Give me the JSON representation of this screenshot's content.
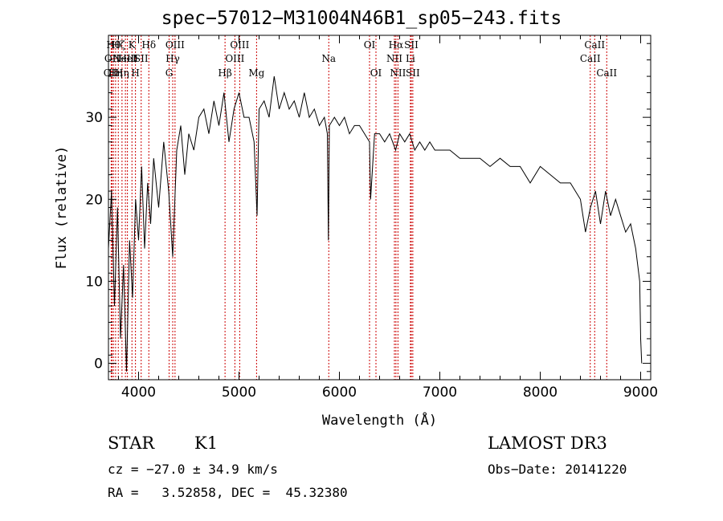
{
  "chart_data": {
    "type": "line",
    "title": "spec−57012−M31004N46B1_sp05−243.fits",
    "xlabel": "Wavelength (Å)",
    "ylabel": "Flux (relative)",
    "xlim": [
      3700,
      9100
    ],
    "ylim": [
      -2,
      40
    ],
    "xticks": [
      4000,
      5000,
      6000,
      7000,
      8000,
      9000
    ],
    "yticks": [
      0,
      10,
      20,
      30
    ],
    "grid": false,
    "line_color": "#000000",
    "marker_color": "#cc0000",
    "series": [
      {
        "x": [
          3700,
          3730,
          3760,
          3790,
          3820,
          3850,
          3880,
          3910,
          3940,
          3970,
          4000,
          4030,
          4060,
          4090,
          4120,
          4150,
          4200,
          4250,
          4300,
          4340,
          4380,
          4420,
          4460,
          4500,
          4550,
          4600,
          4650,
          4700,
          4750,
          4800,
          4850,
          4900,
          4950,
          5000,
          5050,
          5100,
          5150,
          5180,
          5200,
          5250,
          5300,
          5350,
          5400,
          5450,
          5500,
          5550,
          5600,
          5650,
          5700,
          5750,
          5800,
          5850,
          5880,
          5890,
          5900,
          5950,
          6000,
          6050,
          6100,
          6150,
          6200,
          6250,
          6300,
          6310,
          6350,
          6400,
          6450,
          6500,
          6560,
          6600,
          6650,
          6700,
          6750,
          6800,
          6850,
          6900,
          6950,
          7000,
          7100,
          7200,
          7300,
          7400,
          7500,
          7600,
          7700,
          7800,
          7900,
          8000,
          8100,
          8200,
          8300,
          8400,
          8450,
          8500,
          8550,
          8600,
          8650,
          8700,
          8750,
          8800,
          8850,
          8900,
          8950,
          8990,
          9000,
          9010
        ],
        "y": [
          14,
          21,
          7,
          19,
          3,
          12,
          -1,
          15,
          8,
          20,
          15,
          24,
          14,
          22,
          17,
          25,
          19,
          27,
          21,
          13,
          26,
          29,
          23,
          28,
          26,
          30,
          31,
          28,
          32,
          29,
          33,
          27,
          31,
          33,
          30,
          30,
          27,
          18,
          31,
          32,
          30,
          35,
          31,
          33,
          31,
          32,
          30,
          33,
          30,
          31,
          29,
          30,
          28,
          15,
          29,
          30,
          29,
          30,
          28,
          29,
          29,
          28,
          27,
          20,
          28,
          28,
          27,
          28,
          26,
          28,
          27,
          28,
          26,
          27,
          26,
          27,
          26,
          26,
          26,
          25,
          25,
          25,
          24,
          25,
          24,
          24,
          22,
          24,
          23,
          22,
          22,
          20,
          16,
          19,
          21,
          17,
          21,
          18,
          20,
          18,
          16,
          17,
          14,
          10,
          3,
          0
        ]
      }
    ],
    "lines": [
      {
        "wavelength": 3727,
        "labels": [
          "OII"
        ],
        "row": 2
      },
      {
        "wavelength": 3736,
        "labels": [
          "OII"
        ],
        "row": 1
      },
      {
        "wavelength": 3750,
        "labels": [
          "Hθ"
        ],
        "row": 0
      },
      {
        "wavelength": 3771,
        "labels": [
          "Hη"
        ],
        "row": 2
      },
      {
        "wavelength": 3798,
        "labels": [
          "Hζ"
        ],
        "row": 0
      },
      {
        "wavelength": 3835,
        "labels": [
          "Hη"
        ],
        "row": 2
      },
      {
        "wavelength": 3869,
        "labels": [
          "NeIII"
        ],
        "row": 1
      },
      {
        "wavelength": 3889,
        "labels": [
          "HeI"
        ],
        "row": 1
      },
      {
        "wavelength": 3934,
        "labels": [
          "K"
        ],
        "row": 0
      },
      {
        "wavelength": 3969,
        "labels": [
          "H"
        ],
        "row": 2
      },
      {
        "wavelength": 4026,
        "labels": [
          "SII"
        ],
        "row": 1
      },
      {
        "wavelength": 4102,
        "labels": [
          "Hδ"
        ],
        "row": 0
      },
      {
        "wavelength": 4304,
        "labels": [
          "G"
        ],
        "row": 2
      },
      {
        "wavelength": 4340,
        "labels": [
          "Hγ"
        ],
        "row": 1
      },
      {
        "wavelength": 4363,
        "labels": [
          "OIII"
        ],
        "row": 0
      },
      {
        "wavelength": 4861,
        "labels": [
          "Hβ"
        ],
        "row": 2
      },
      {
        "wavelength": 4959,
        "labels": [
          "OIII"
        ],
        "row": 1
      },
      {
        "wavelength": 5007,
        "labels": [
          "OIII"
        ],
        "row": 0
      },
      {
        "wavelength": 5175,
        "labels": [
          "Mg"
        ],
        "row": 2
      },
      {
        "wavelength": 5894,
        "labels": [
          "Na"
        ],
        "row": 1
      },
      {
        "wavelength": 6300,
        "labels": [
          "OI"
        ],
        "row": 0
      },
      {
        "wavelength": 6364,
        "labels": [
          "OI"
        ],
        "row": 2
      },
      {
        "wavelength": 6548,
        "labels": [
          "NII"
        ],
        "row": 1
      },
      {
        "wavelength": 6563,
        "labels": [
          "Hα"
        ],
        "row": 0
      },
      {
        "wavelength": 6583,
        "labels": [
          "NII"
        ],
        "row": 2
      },
      {
        "wavelength": 6707,
        "labels": [
          "Li"
        ],
        "row": 1
      },
      {
        "wavelength": 6716,
        "labels": [
          "SII"
        ],
        "row": 0
      },
      {
        "wavelength": 6731,
        "labels": [
          "SII"
        ],
        "row": 2
      },
      {
        "wavelength": 8498,
        "labels": [
          "CaII"
        ],
        "row": 1
      },
      {
        "wavelength": 8542,
        "labels": [
          "CaII"
        ],
        "row": 0
      },
      {
        "wavelength": 8662,
        "labels": [
          "CaII"
        ],
        "row": 2
      }
    ]
  },
  "info": {
    "class": "STAR",
    "subclass": "K1",
    "survey": "LAMOST DR3",
    "cz": "cz = −27.0 ± 34.9 km/s",
    "obs_date": "Obs−Date: 20141220",
    "radec": "RA =   3.52858, DEC =  45.32380"
  }
}
